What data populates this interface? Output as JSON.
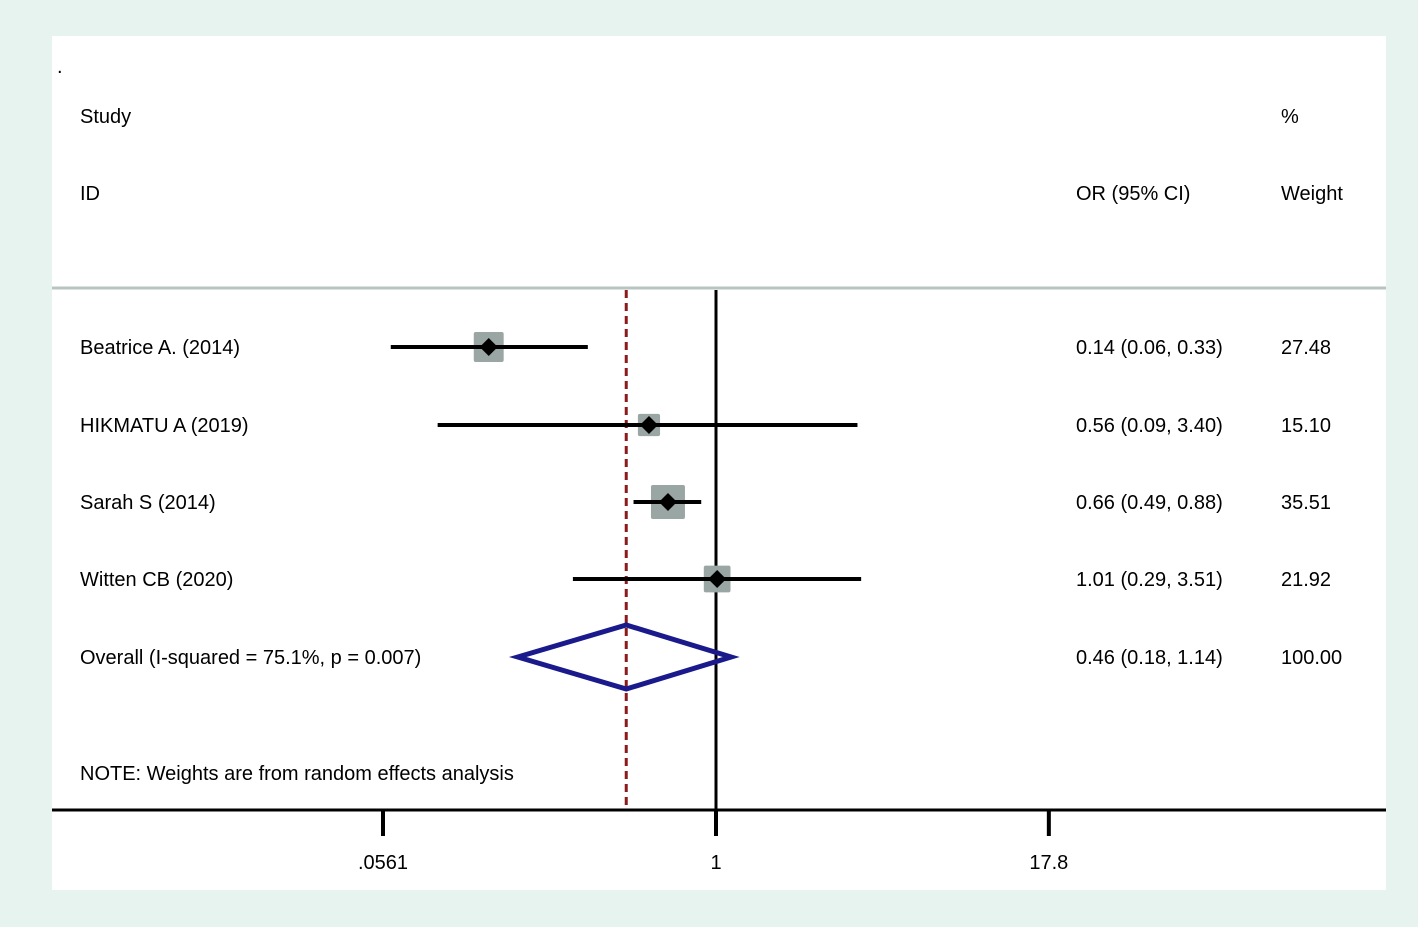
{
  "corner_mark": ".",
  "header": {
    "study_line1": "Study",
    "study_line2": "ID",
    "ci_header": "OR (95% CI)",
    "weight_line1": "%",
    "weight_line2": "Weight"
  },
  "note": "NOTE: Weights are from random effects analysis",
  "colors": {
    "background": "#e6f3ee",
    "panel": "#ffffff",
    "weight_box": "#9aa6a3",
    "ci_line": "#000000",
    "diamond": "#1a1a8c",
    "overall_line": "#8b1a1a"
  },
  "chart_data": {
    "type": "forest",
    "x_scale": "log",
    "xticks": [
      {
        "value": 0.0561,
        "label": ".0561"
      },
      {
        "value": 1,
        "label": "1"
      },
      {
        "value": 17.8,
        "label": "17.8"
      }
    ],
    "null_line": 1,
    "studies": [
      {
        "label": "Beatrice A.  (2014)",
        "or": 0.14,
        "lower": 0.06,
        "upper": 0.33,
        "ci_text": "0.14 (0.06, 0.33)",
        "weight": 27.48,
        "weight_text": "27.48"
      },
      {
        "label": "HIKMATU A (2019)",
        "or": 0.56,
        "lower": 0.09,
        "upper": 3.4,
        "ci_text": "0.56 (0.09, 3.40)",
        "weight": 15.1,
        "weight_text": "15.10"
      },
      {
        "label": "Sarah S (2014)",
        "or": 0.66,
        "lower": 0.49,
        "upper": 0.88,
        "ci_text": "0.66 (0.49, 0.88)",
        "weight": 35.51,
        "weight_text": "35.51"
      },
      {
        "label": "Witten CB (2020)",
        "or": 1.01,
        "lower": 0.29,
        "upper": 3.51,
        "ci_text": "1.01 (0.29, 3.51)",
        "weight": 21.92,
        "weight_text": "21.92"
      }
    ],
    "overall": {
      "label": "Overall  (I-squared = 75.1%, p = 0.007)",
      "or": 0.46,
      "lower": 0.18,
      "upper": 1.14,
      "ci_text": "0.46 (0.18, 1.14)",
      "weight_text": "100.00"
    }
  }
}
